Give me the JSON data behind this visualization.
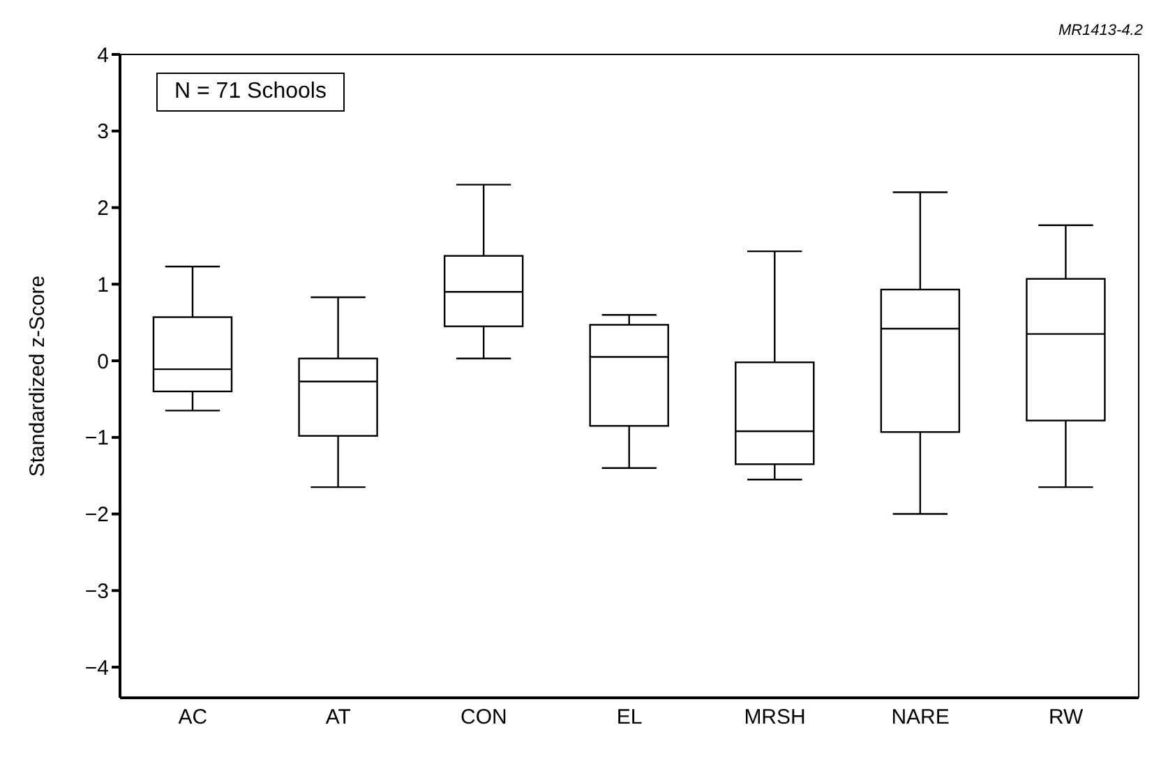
{
  "chart_data": {
    "type": "box",
    "ylabel": "Standardized z-Score",
    "categories": [
      "AC",
      "AT",
      "CON",
      "EL",
      "MRSH",
      "NARE",
      "RW"
    ],
    "boxes": [
      {
        "low": -0.65,
        "q1": -0.4,
        "median": -0.11,
        "q3": 0.57,
        "high": 1.23
      },
      {
        "low": -1.65,
        "q1": -0.98,
        "median": -0.27,
        "q3": 0.03,
        "high": 0.83
      },
      {
        "low": 0.03,
        "q1": 0.45,
        "median": 0.9,
        "q3": 1.37,
        "high": 2.3
      },
      {
        "low": -1.4,
        "q1": -0.85,
        "median": 0.05,
        "q3": 0.47,
        "high": 0.6
      },
      {
        "low": -1.55,
        "q1": -1.35,
        "median": -0.92,
        "q3": -0.02,
        "high": 1.43
      },
      {
        "low": -2.0,
        "q1": -0.93,
        "median": 0.42,
        "q3": 0.93,
        "high": 2.2
      },
      {
        "low": -1.65,
        "q1": -0.78,
        "median": 0.35,
        "q3": 1.07,
        "high": 1.77
      }
    ],
    "color": "#000000",
    "ylim": [
      -4.4,
      4
    ],
    "yticks": [
      -4,
      -3,
      -2,
      -1,
      0,
      1,
      2,
      3,
      4
    ],
    "annotations": [
      "N = 71 Schools",
      "MR1413-4.2"
    ]
  }
}
